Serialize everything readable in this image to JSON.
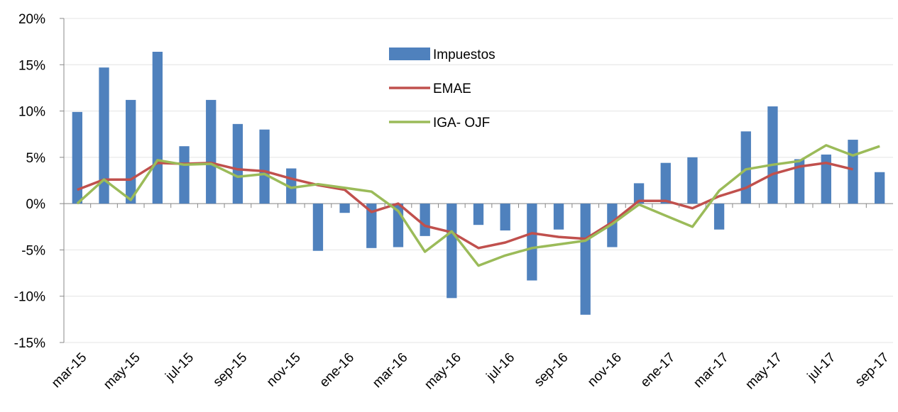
{
  "chart_data": {
    "type": "bar-line",
    "categories": [
      "mar-15",
      null,
      "may-15",
      null,
      "jul-15",
      null,
      "sep-15",
      null,
      "nov-15",
      null,
      "ene-16",
      null,
      "mar-16",
      null,
      "may-16",
      null,
      "jul-16",
      null,
      "sep-16",
      null,
      "nov-16",
      null,
      "ene-17",
      null,
      "mar-17",
      null,
      "may-17",
      null,
      "jul-17",
      null,
      "sep-17"
    ],
    "series": [
      {
        "name": "Impuestos",
        "type": "bar",
        "color": "#4f81bd",
        "values": [
          9.9,
          14.7,
          11.2,
          16.4,
          6.2,
          11.2,
          8.6,
          8.0,
          3.8,
          -5.1,
          -1.0,
          -4.8,
          -4.7,
          -3.5,
          -10.2,
          -2.3,
          -2.9,
          -8.3,
          -2.8,
          -12.0,
          -4.7,
          2.2,
          4.4,
          5.0,
          -2.8,
          7.8,
          10.5,
          4.8,
          5.3,
          6.9,
          3.4
        ]
      },
      {
        "name": "EMAE",
        "type": "line",
        "color": "#c0504d",
        "values": [
          1.5,
          2.6,
          2.6,
          4.4,
          4.3,
          4.4,
          3.7,
          3.5,
          2.7,
          2.0,
          1.5,
          -0.9,
          0.0,
          -2.4,
          -3.1,
          -4.8,
          -4.2,
          -3.2,
          -3.6,
          -3.8,
          -2.0,
          0.3,
          0.3,
          -0.5,
          0.8,
          1.7,
          3.2,
          4.0,
          4.4,
          3.7,
          null
        ]
      },
      {
        "name": "IGA- OJF",
        "type": "line",
        "color": "#9bbb59",
        "values": [
          0.0,
          2.6,
          0.4,
          4.7,
          4.2,
          4.3,
          2.9,
          3.2,
          1.7,
          2.1,
          1.7,
          1.3,
          -0.8,
          -5.2,
          -3.0,
          -6.7,
          -5.6,
          -4.8,
          -4.4,
          -4.0,
          -2.2,
          -0.1,
          -1.3,
          -2.5,
          1.4,
          3.7,
          4.2,
          4.6,
          6.3,
          5.2,
          6.2
        ]
      }
    ],
    "ylim": [
      -15,
      20
    ],
    "yticks": [
      {
        "value": -15,
        "label": "-15%"
      },
      {
        "value": -10,
        "label": "-10%"
      },
      {
        "value": -5,
        "label": "-5%"
      },
      {
        "value": 0,
        "label": "0%"
      },
      {
        "value": 5,
        "label": "5%"
      },
      {
        "value": 10,
        "label": "10%"
      },
      {
        "value": 15,
        "label": "15%"
      },
      {
        "value": 20,
        "label": "20%"
      }
    ],
    "grid": true,
    "legend": "top-center"
  }
}
